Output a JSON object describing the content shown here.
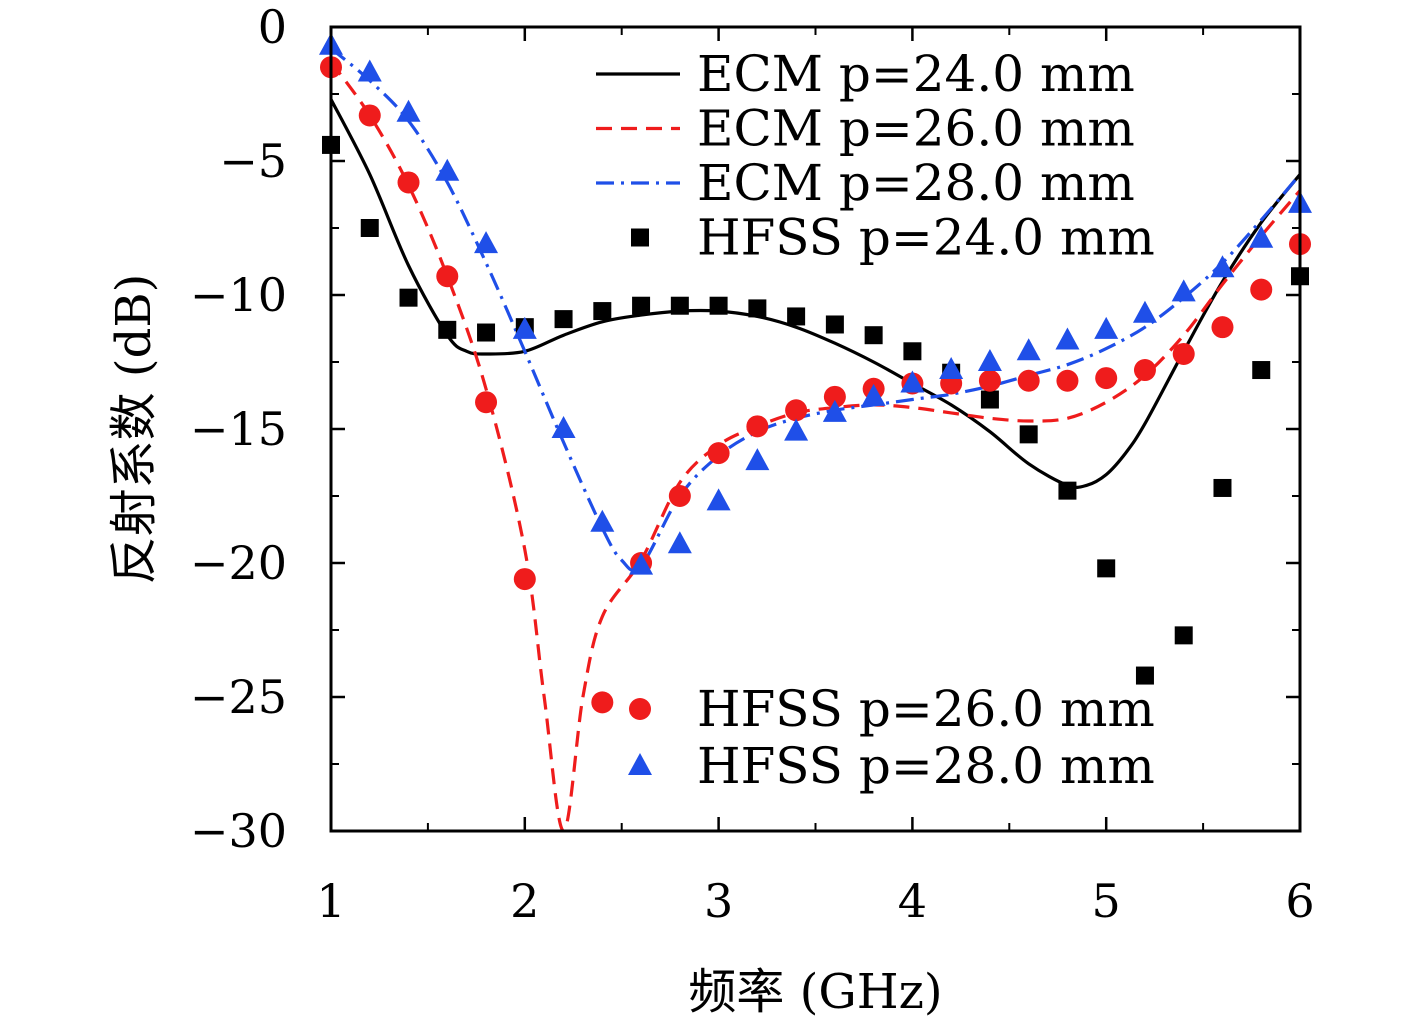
{
  "chart_data": {
    "type": "line",
    "xlabel": "频率 (GHz)",
    "ylabel": "反射系数 (dB)",
    "xlim": [
      1,
      6
    ],
    "ylim": [
      -30,
      0
    ],
    "xticks": [
      1,
      2,
      3,
      4,
      5,
      6
    ],
    "yticks": [
      0,
      -5,
      -10,
      -15,
      -20,
      -25,
      -30
    ],
    "xtick_labels": [
      "1",
      "2",
      "3",
      "4",
      "5",
      "6"
    ],
    "ytick_labels": [
      "0",
      "−5",
      "−10",
      "−15",
      "−20",
      "−25",
      "−30"
    ],
    "grid": false,
    "legend_placement": [
      "top-right",
      "bottom-right"
    ],
    "series": [
      {
        "name": "ECM p=24.0 mm",
        "style": "line",
        "dash": "solid",
        "color": "#000000",
        "x": [
          1.0,
          1.2,
          1.4,
          1.6,
          1.7,
          1.8,
          2.0,
          2.2,
          2.4,
          2.6,
          2.8,
          3.0,
          3.2,
          3.4,
          3.6,
          3.8,
          4.0,
          4.2,
          4.4,
          4.6,
          4.8,
          4.9,
          5.0,
          5.1,
          5.2,
          5.4,
          5.6,
          5.8,
          6.0
        ],
        "y": [
          -2.7,
          -5.5,
          -8.9,
          -11.5,
          -12.1,
          -12.2,
          -12.1,
          -11.5,
          -11.0,
          -10.75,
          -10.6,
          -10.6,
          -10.8,
          -11.2,
          -11.8,
          -12.5,
          -13.3,
          -14.1,
          -15.1,
          -16.3,
          -17.1,
          -17.1,
          -16.7,
          -15.9,
          -14.8,
          -12.1,
          -9.5,
          -7.3,
          -5.5
        ]
      },
      {
        "name": "ECM p=26.0 mm",
        "style": "line",
        "dash": "dashed",
        "color": "#ef1c1c",
        "x": [
          1.0,
          1.2,
          1.4,
          1.6,
          1.8,
          2.0,
          2.1,
          2.2,
          2.3,
          2.4,
          2.6,
          2.8,
          3.0,
          3.2,
          3.4,
          3.6,
          3.8,
          4.0,
          4.2,
          4.4,
          4.6,
          4.8,
          5.0,
          5.2,
          5.4,
          5.6,
          5.8,
          6.0
        ],
        "y": [
          -1.3,
          -3.3,
          -5.9,
          -9.3,
          -13.5,
          -19.5,
          -25.0,
          -30.0,
          -25.0,
          -22.0,
          -19.9,
          -17.0,
          -15.6,
          -14.9,
          -14.4,
          -14.2,
          -14.1,
          -14.2,
          -14.4,
          -14.6,
          -14.7,
          -14.6,
          -14.0,
          -13.0,
          -11.5,
          -9.6,
          -7.8,
          -6.1
        ]
      },
      {
        "name": "ECM p=28.0 mm",
        "style": "line",
        "dash": "dashdot",
        "color": "#1f4fe8",
        "x": [
          1.0,
          1.2,
          1.4,
          1.6,
          1.8,
          2.0,
          2.2,
          2.4,
          2.5,
          2.6,
          2.8,
          3.0,
          3.2,
          3.4,
          3.6,
          3.8,
          4.0,
          4.2,
          4.4,
          4.6,
          4.8,
          5.0,
          5.2,
          5.4,
          5.6,
          5.8,
          6.0
        ],
        "y": [
          -0.8,
          -2.0,
          -3.5,
          -5.8,
          -8.8,
          -12.1,
          -15.5,
          -18.7,
          -19.9,
          -20.1,
          -17.5,
          -16.0,
          -15.1,
          -14.6,
          -14.3,
          -14.1,
          -13.9,
          -13.7,
          -13.4,
          -13.0,
          -12.6,
          -12.0,
          -11.2,
          -10.1,
          -8.8,
          -7.2,
          -5.5
        ]
      },
      {
        "name": "HFSS p=24.0 mm",
        "style": "markers",
        "marker": "square",
        "color": "#000000",
        "x": [
          1.0,
          1.2,
          1.4,
          1.6,
          1.8,
          2.0,
          2.2,
          2.4,
          2.6,
          2.8,
          3.0,
          3.2,
          3.4,
          3.6,
          3.8,
          4.0,
          4.2,
          4.4,
          4.6,
          4.8,
          5.0,
          5.2,
          5.4,
          5.6,
          5.8,
          6.0
        ],
        "y": [
          -4.4,
          -7.5,
          -10.1,
          -11.3,
          -11.4,
          -11.2,
          -10.9,
          -10.6,
          -10.4,
          -10.4,
          -10.4,
          -10.5,
          -10.8,
          -11.1,
          -11.5,
          -12.1,
          -12.9,
          -13.9,
          -15.2,
          -17.3,
          -20.2,
          -24.2,
          -22.7,
          -17.2,
          -12.8,
          -9.3
        ]
      },
      {
        "name": "HFSS p=26.0 mm",
        "style": "markers",
        "marker": "circle",
        "color": "#ef1c1c",
        "x": [
          1.0,
          1.2,
          1.4,
          1.6,
          1.8,
          2.0,
          2.4,
          2.6,
          2.8,
          3.0,
          3.2,
          3.4,
          3.6,
          3.8,
          4.0,
          4.2,
          4.4,
          4.6,
          4.8,
          5.0,
          5.2,
          5.4,
          5.6,
          5.8,
          6.0
        ],
        "y": [
          -1.5,
          -3.3,
          -5.8,
          -9.3,
          -14.0,
          -20.6,
          -25.2,
          -20.0,
          -17.5,
          -15.9,
          -14.9,
          -14.3,
          -13.8,
          -13.5,
          -13.3,
          -13.3,
          -13.2,
          -13.2,
          -13.2,
          -13.1,
          -12.8,
          -12.2,
          -11.2,
          -9.8,
          -8.1
        ]
      },
      {
        "name": "HFSS p=28.0 mm",
        "style": "markers",
        "marker": "triangle",
        "color": "#1f4fe8",
        "x": [
          1.0,
          1.2,
          1.4,
          1.6,
          1.8,
          2.0,
          2.2,
          2.4,
          2.6,
          2.8,
          3.0,
          3.2,
          3.4,
          3.6,
          3.8,
          4.0,
          4.2,
          4.4,
          4.6,
          4.8,
          5.0,
          5.2,
          5.4,
          5.6,
          5.8,
          6.0
        ],
        "y": [
          -0.7,
          -1.7,
          -3.2,
          -5.4,
          -8.1,
          -11.3,
          -15.0,
          -18.5,
          -20.1,
          -19.3,
          -17.7,
          -16.2,
          -15.1,
          -14.4,
          -13.8,
          -13.3,
          -12.8,
          -12.5,
          -12.1,
          -11.7,
          -11.3,
          -10.7,
          -9.9,
          -9.0,
          -7.9,
          -6.6
        ]
      }
    ]
  }
}
